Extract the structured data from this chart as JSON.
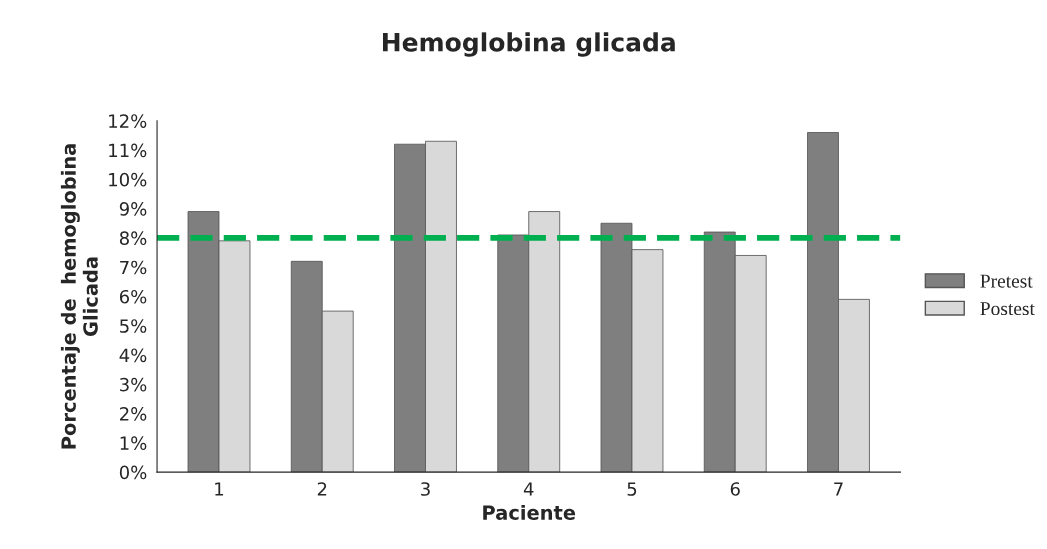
{
  "chart_data": {
    "type": "bar",
    "title": "Hemoglobina glicada",
    "xlabel": "Paciente",
    "ylabel": "Porcentaje de  hemoglobina\nGlicada",
    "categories": [
      "1",
      "2",
      "3",
      "4",
      "5",
      "6",
      "7"
    ],
    "series": [
      {
        "name": "Pretest",
        "color": "#7f7f7f",
        "values": [
          8.9,
          7.2,
          11.2,
          8.1,
          8.5,
          8.2,
          11.6
        ]
      },
      {
        "name": "Postest",
        "color": "#d9d9d9",
        "values": [
          7.9,
          5.5,
          11.3,
          8.9,
          7.6,
          7.4,
          5.9
        ]
      }
    ],
    "ylim": [
      0,
      12
    ],
    "yticks": [
      {
        "value": 0,
        "label": "0%"
      },
      {
        "value": 1,
        "label": "1%"
      },
      {
        "value": 2,
        "label": "2%"
      },
      {
        "value": 3,
        "label": "3%"
      },
      {
        "value": 4,
        "label": "4%"
      },
      {
        "value": 5,
        "label": "5%"
      },
      {
        "value": 6,
        "label": "6%"
      },
      {
        "value": 7,
        "label": "7%"
      },
      {
        "value": 8,
        "label": "8%"
      },
      {
        "value": 9,
        "label": "9%"
      },
      {
        "value": 10,
        "label": "10%"
      },
      {
        "value": 11,
        "label": "11%"
      },
      {
        "value": 12,
        "label": "12%"
      }
    ],
    "ref_lines": [
      {
        "axis": "y",
        "value": 8,
        "color": "#00b050",
        "line_style": "dashed"
      }
    ],
    "legend": "right",
    "grid": false
  }
}
